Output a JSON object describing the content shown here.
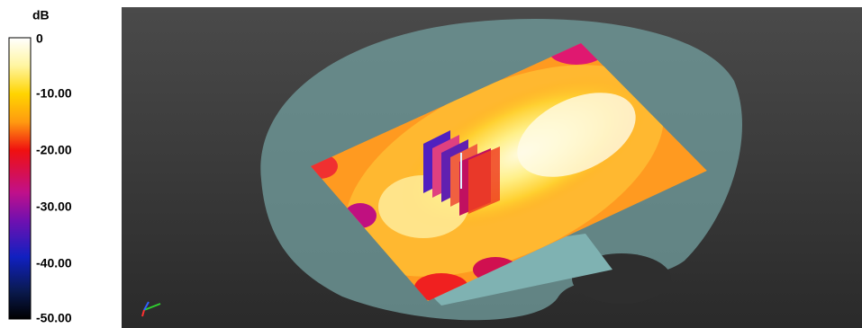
{
  "colorbar": {
    "unit": "dB",
    "labels": [
      "0",
      "-10.00",
      "-20.00",
      "-30.00",
      "-40.00",
      "-50.00"
    ]
  }
}
